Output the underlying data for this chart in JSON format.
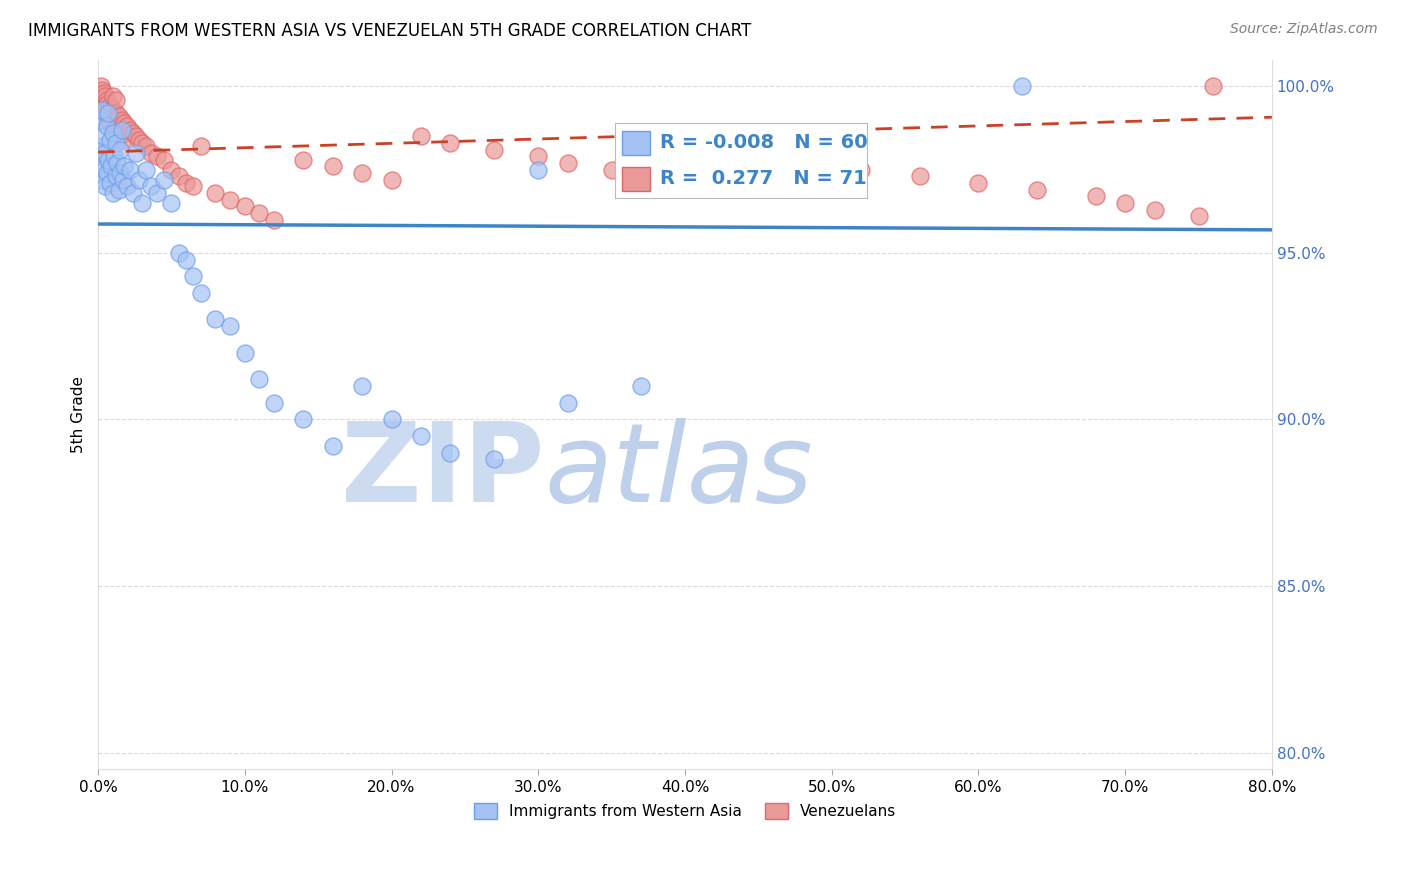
{
  "title": "IMMIGRANTS FROM WESTERN ASIA VS VENEZUELAN 5TH GRADE CORRELATION CHART",
  "source": "Source: ZipAtlas.com",
  "ylabel_label": "5th Grade",
  "xlim": [
    0.0,
    0.8
  ],
  "ylim": [
    0.795,
    1.008
  ],
  "yticks": [
    0.8,
    0.85,
    0.9,
    0.95,
    1.0
  ],
  "ytick_labels": [
    "80.0%",
    "85.0%",
    "90.0%",
    "95.0%",
    "100.0%"
  ],
  "xticks": [
    0.0,
    0.1,
    0.2,
    0.3,
    0.4,
    0.5,
    0.6,
    0.7,
    0.8
  ],
  "xtick_labels": [
    "0.0%",
    "10.0%",
    "20.0%",
    "30.0%",
    "40.0%",
    "50.0%",
    "60.0%",
    "70.0%",
    "80.0%"
  ],
  "legend_blue_label": "Immigrants from Western Asia",
  "legend_pink_label": "Venezuelans",
  "R_blue": -0.008,
  "N_blue": 60,
  "R_pink": 0.277,
  "N_pink": 71,
  "blue_scatter_x": [
    0.001,
    0.002,
    0.002,
    0.003,
    0.003,
    0.003,
    0.004,
    0.004,
    0.005,
    0.005,
    0.006,
    0.006,
    0.007,
    0.007,
    0.008,
    0.008,
    0.009,
    0.01,
    0.01,
    0.011,
    0.012,
    0.012,
    0.013,
    0.014,
    0.015,
    0.015,
    0.016,
    0.017,
    0.018,
    0.02,
    0.022,
    0.024,
    0.026,
    0.028,
    0.03,
    0.033,
    0.036,
    0.04,
    0.045,
    0.05,
    0.055,
    0.06,
    0.065,
    0.07,
    0.08,
    0.09,
    0.1,
    0.11,
    0.12,
    0.14,
    0.16,
    0.18,
    0.2,
    0.22,
    0.24,
    0.27,
    0.3,
    0.32,
    0.37,
    0.63
  ],
  "blue_scatter_y": [
    0.976,
    0.98,
    0.99,
    0.972,
    0.982,
    0.993,
    0.975,
    0.985,
    0.97,
    0.98,
    0.974,
    0.988,
    0.978,
    0.992,
    0.971,
    0.984,
    0.976,
    0.968,
    0.986,
    0.979,
    0.973,
    0.983,
    0.977,
    0.969,
    0.981,
    0.974,
    0.987,
    0.972,
    0.976,
    0.97,
    0.975,
    0.968,
    0.98,
    0.972,
    0.965,
    0.975,
    0.97,
    0.968,
    0.972,
    0.965,
    0.95,
    0.948,
    0.943,
    0.938,
    0.93,
    0.928,
    0.92,
    0.912,
    0.905,
    0.9,
    0.892,
    0.91,
    0.9,
    0.895,
    0.89,
    0.888,
    0.975,
    0.905,
    0.91,
    1.0
  ],
  "pink_scatter_x": [
    0.001,
    0.002,
    0.002,
    0.003,
    0.003,
    0.004,
    0.004,
    0.005,
    0.005,
    0.006,
    0.006,
    0.007,
    0.007,
    0.008,
    0.008,
    0.009,
    0.01,
    0.01,
    0.011,
    0.012,
    0.012,
    0.013,
    0.014,
    0.015,
    0.016,
    0.017,
    0.018,
    0.02,
    0.022,
    0.024,
    0.026,
    0.028,
    0.03,
    0.033,
    0.036,
    0.04,
    0.045,
    0.05,
    0.055,
    0.06,
    0.065,
    0.07,
    0.08,
    0.09,
    0.1,
    0.11,
    0.12,
    0.14,
    0.16,
    0.18,
    0.2,
    0.22,
    0.24,
    0.27,
    0.3,
    0.32,
    0.35,
    0.38,
    0.4,
    0.43,
    0.46,
    0.49,
    0.52,
    0.56,
    0.6,
    0.64,
    0.68,
    0.7,
    0.72,
    0.75,
    0.76
  ],
  "pink_scatter_y": [
    0.998,
    0.996,
    1.0,
    0.994,
    0.999,
    0.993,
    0.998,
    0.992,
    0.997,
    0.991,
    0.996,
    0.99,
    0.995,
    0.989,
    0.994,
    0.988,
    0.993,
    0.997,
    0.987,
    0.992,
    0.996,
    0.986,
    0.991,
    0.985,
    0.99,
    0.984,
    0.989,
    0.988,
    0.987,
    0.986,
    0.985,
    0.984,
    0.983,
    0.982,
    0.98,
    0.979,
    0.978,
    0.975,
    0.973,
    0.971,
    0.97,
    0.982,
    0.968,
    0.966,
    0.964,
    0.962,
    0.96,
    0.978,
    0.976,
    0.974,
    0.972,
    0.985,
    0.983,
    0.981,
    0.979,
    0.977,
    0.975,
    0.985,
    0.983,
    0.981,
    0.979,
    0.977,
    0.975,
    0.973,
    0.971,
    0.969,
    0.967,
    0.965,
    0.963,
    0.961,
    1.0
  ],
  "blue_color": "#a4c2f4",
  "pink_color": "#ea9999",
  "blue_edge_color": "#6d9eeb",
  "pink_edge_color": "#e06666",
  "blue_line_color": "#3d85c8",
  "pink_line_color": "#cc4125",
  "right_axis_color": "#4472c4",
  "background_color": "#ffffff",
  "grid_color": "#cccccc",
  "watermark_zip_color": "#c9daf8",
  "watermark_atlas_color": "#b6d7f5"
}
